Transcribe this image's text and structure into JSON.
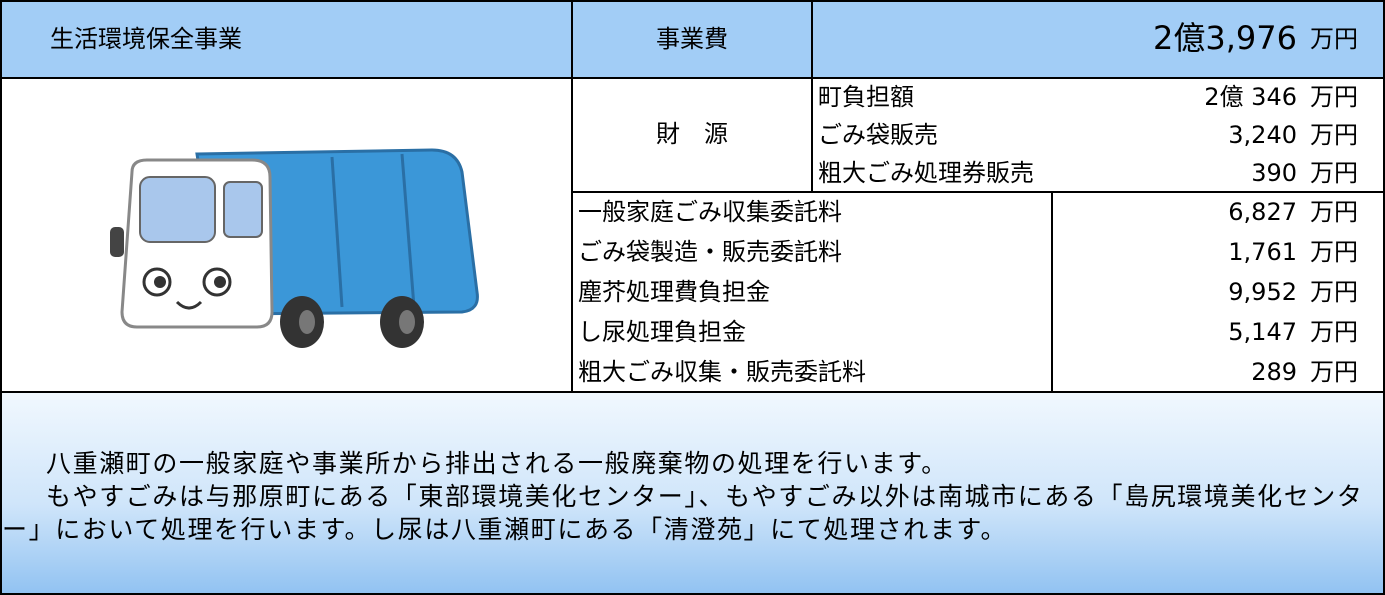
{
  "header": {
    "title": "生活環境保全事業",
    "cost_label": "事業費",
    "cost_amount": "2億3,976",
    "cost_unit": "万円"
  },
  "funding": {
    "label": "財　源",
    "rows": [
      [
        "町負担額",
        "2億 346",
        "万円"
      ],
      [
        "ごみ袋販売",
        "3,240",
        "万円"
      ],
      [
        "粗大ごみ処理券販売",
        "390",
        "万円"
      ]
    ]
  },
  "expenses": [
    [
      "一般家庭ごみ収集委託料",
      "6,827",
      "万円"
    ],
    [
      "ごみ袋製造・販売委託料",
      "1,761",
      "万円"
    ],
    [
      "塵芥処理費負担金",
      "9,952",
      "万円"
    ],
    [
      "し尿処理負担金",
      "5,147",
      "万円"
    ],
    [
      "粗大ごみ収集・販売委託料",
      "289",
      "万円"
    ]
  ],
  "description": [
    "八重瀬町の一般家庭や事業所から排出される一般廃棄物の処理を行います。",
    "もやすごみは与那原町にある「東部環境美化センター」、もやすごみ以外は南城市にある「島尻環境美化センター」において処理を行います。し尿は八重瀬町にある「清澄苑」にて処理されます。"
  ]
}
